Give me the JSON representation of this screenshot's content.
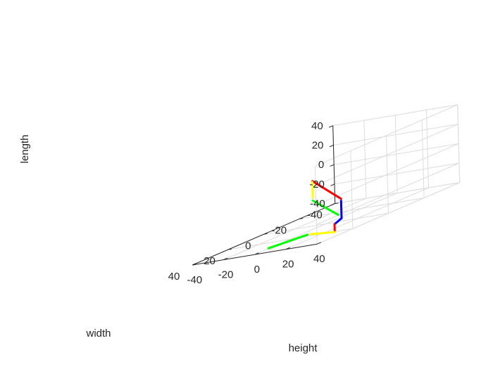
{
  "chart_data": {
    "type": "line3d",
    "xlabel": "height",
    "ylabel": "width",
    "zlabel": "length",
    "xlim": [
      -40,
      40
    ],
    "ylim": [
      -40,
      40
    ],
    "zlim": [
      -40,
      40
    ],
    "xticks": [
      "-40",
      "-20",
      "0",
      "20",
      "40"
    ],
    "yticks": [
      "-40",
      "-20",
      "0",
      "20",
      "40"
    ],
    "zticks": [
      "-40",
      "-20",
      "0",
      "20",
      "40"
    ],
    "grid": true,
    "box": false,
    "segments": [
      {
        "color": "#ff0000",
        "points": [
          [
            -8,
            0,
            6
          ],
          [
            10,
            0,
            -17
          ]
        ]
      },
      {
        "color": "#ffff00",
        "points": [
          [
            -8,
            0,
            5
          ],
          [
            -8,
            0,
            -11
          ]
        ]
      },
      {
        "color": "#00ff00",
        "points": [
          [
            -8,
            0,
            -14
          ],
          [
            8,
            0,
            -33
          ]
        ]
      },
      {
        "color": "#0000ff",
        "points": [
          [
            10,
            0,
            -19
          ],
          [
            10,
            0,
            -37
          ]
        ]
      },
      {
        "color": "#0000ff",
        "points": [
          [
            10,
            0,
            -37
          ],
          [
            10,
            4,
            -40
          ]
        ]
      },
      {
        "color": "#ff0000",
        "points": [
          [
            10,
            4,
            -40
          ],
          [
            10,
            4,
            -48
          ]
        ]
      },
      {
        "color": "#ffff00",
        "points": [
          [
            10,
            4,
            -48
          ],
          [
            -10,
            0,
            -48
          ]
        ]
      },
      {
        "color": "#00ff00",
        "points": [
          [
            -12,
            0,
            -48
          ],
          [
            -20,
            15,
            -48
          ]
        ]
      }
    ]
  }
}
